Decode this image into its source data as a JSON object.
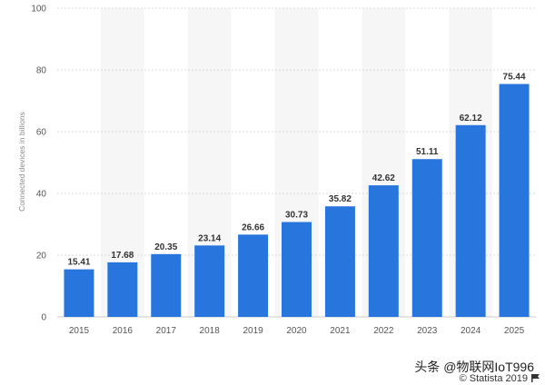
{
  "chart_data": {
    "type": "bar",
    "categories": [
      "2015",
      "2016",
      "2017",
      "2018",
      "2019",
      "2020",
      "2021",
      "2022",
      "2023",
      "2024",
      "2025"
    ],
    "values": [
      15.41,
      17.68,
      20.35,
      23.14,
      26.66,
      30.73,
      35.82,
      42.62,
      51.11,
      62.12,
      75.44
    ],
    "title": "",
    "xlabel": "",
    "ylabel": "Connected devices in billions",
    "ylim": [
      0,
      100
    ],
    "yticks": [
      0,
      20,
      40,
      60,
      80,
      100
    ],
    "grid": true,
    "bar_color": "#2876dd",
    "band_color": "#f6f6f6"
  },
  "watermark": "头条 @物联网IoT996",
  "credit": "© Statista 2019",
  "flag_icon": "flag-icon"
}
